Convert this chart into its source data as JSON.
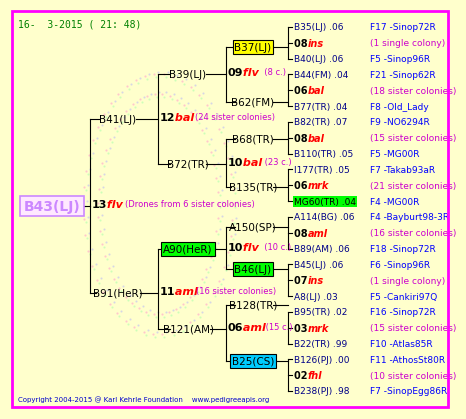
{
  "bg_color": "#ffffcc",
  "border_color": "#ff00ff",
  "title_text": "16-  3-2015 ( 21: 48)",
  "title_color": "#008000",
  "copyright_text": "Copyright 2004-2015 @ Karl Kehrle Foundation    www.pedigreeapis.org",
  "copyright_color": "#0000cc",
  "right_entries": [
    {
      "row": 0,
      "label1": "B35(LJ) .06",
      "label2": "F17 -Sinop72R",
      "color1": "#000088",
      "color2": "#0000ff",
      "italic1": false
    },
    {
      "row": 1,
      "label1": "08 ins",
      "label2": "(1 single colony)",
      "color1": "#000000",
      "color2": "#cc00cc",
      "italic1": true,
      "word": "ins"
    },
    {
      "row": 2,
      "label1": "B40(LJ) .06",
      "label2": "F5 -Sinop96R",
      "color1": "#000088",
      "color2": "#0000ff",
      "italic1": false
    },
    {
      "row": 3,
      "label1": "B44(FM) .04",
      "label2": "F21 -Sinop62R",
      "color1": "#000088",
      "color2": "#0000ff",
      "italic1": false
    },
    {
      "row": 4,
      "label1": "06 bal",
      "label2": "(18 sister colonies)",
      "color1": "#000000",
      "color2": "#cc00cc",
      "italic1": true,
      "word": "bal"
    },
    {
      "row": 5,
      "label1": "B77(TR) .04",
      "label2": "F8 -Old_Lady",
      "color1": "#000088",
      "color2": "#0000ff",
      "italic1": false
    },
    {
      "row": 6,
      "label1": "B82(TR) .07",
      "label2": "F9 -NO6294R",
      "color1": "#000088",
      "color2": "#0000ff",
      "italic1": false
    },
    {
      "row": 7,
      "label1": "08 bal",
      "label2": "(15 sister colonies)",
      "color1": "#000000",
      "color2": "#cc00cc",
      "italic1": true,
      "word": "bal"
    },
    {
      "row": 8,
      "label1": "B110(TR) .05",
      "label2": "F5 -MG00R",
      "color1": "#000088",
      "color2": "#0000ff",
      "italic1": false
    },
    {
      "row": 9,
      "label1": "I177(TR) .05",
      "label2": "F7 -Takab93aR",
      "color1": "#000088",
      "color2": "#0000ff",
      "italic1": false
    },
    {
      "row": 10,
      "label1": "06 mrk",
      "label2": "(21 sister colonies)",
      "color1": "#000000",
      "color2": "#cc00cc",
      "italic1": true,
      "word": "mrk"
    },
    {
      "row": 11,
      "label1": "MG60(TR) .04",
      "label2": "F4 -MG00R",
      "color1": "#000000",
      "color2": "#0000ff",
      "italic1": false,
      "bg1": "#00ff00"
    },
    {
      "row": 12,
      "label1": "A114(BG) .06",
      "label2": "F4 -Bayburt98-3R",
      "color1": "#000088",
      "color2": "#0000ff",
      "italic1": false
    },
    {
      "row": 13,
      "label1": "08 aml",
      "label2": "(16 sister colonies)",
      "color1": "#000000",
      "color2": "#cc00cc",
      "italic1": true,
      "word": "aml"
    },
    {
      "row": 14,
      "label1": "B89(AM) .06",
      "label2": "F18 -Sinop72R",
      "color1": "#000088",
      "color2": "#0000ff",
      "italic1": false
    },
    {
      "row": 15,
      "label1": "B45(LJ) .06",
      "label2": "F6 -Sinop96R",
      "color1": "#000088",
      "color2": "#0000ff",
      "italic1": false
    },
    {
      "row": 16,
      "label1": "07 ins",
      "label2": "(1 single colony)",
      "color1": "#000000",
      "color2": "#cc00cc",
      "italic1": true,
      "word": "ins"
    },
    {
      "row": 17,
      "label1": "A8(LJ) .03",
      "label2": "F5 -Cankiri97Q",
      "color1": "#000088",
      "color2": "#0000ff",
      "italic1": false
    },
    {
      "row": 18,
      "label1": "B95(TR) .02",
      "label2": "F16 -Sinop72R",
      "color1": "#000088",
      "color2": "#0000ff",
      "italic1": false
    },
    {
      "row": 19,
      "label1": "03 mrk",
      "label2": "(15 sister colonies)",
      "color1": "#000000",
      "color2": "#cc00cc",
      "italic1": true,
      "word": "mrk"
    },
    {
      "row": 20,
      "label1": "B22(TR) .99",
      "label2": "F10 -Atlas85R",
      "color1": "#000088",
      "color2": "#0000ff",
      "italic1": false
    },
    {
      "row": 21,
      "label1": "B126(PJ) .00",
      "label2": "F11 -AthosSt80R",
      "color1": "#000088",
      "color2": "#0000ff",
      "italic1": false
    },
    {
      "row": 22,
      "label1": "02 fhl",
      "label2": "(10 sister colonies)",
      "color1": "#000000",
      "color2": "#cc00cc",
      "italic1": true,
      "word": "fhl"
    },
    {
      "row": 23,
      "label1": "B238(PJ) .98",
      "label2": "F7 -SinopEgg86R",
      "color1": "#000088",
      "color2": "#0000ff",
      "italic1": false
    }
  ]
}
